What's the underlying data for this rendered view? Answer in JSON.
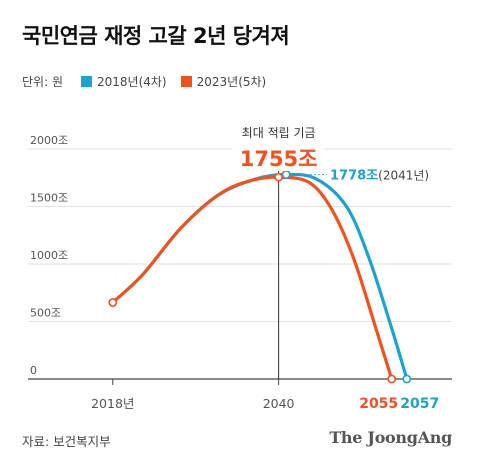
{
  "header": {
    "title": "국민연금 재정 고갈 2년 당겨져",
    "unit": "단위: 원"
  },
  "colors": {
    "series_2018": "#1aa3cf",
    "series_2023": "#f4511e",
    "grid": "#e2e2e2",
    "axis": "#444444"
  },
  "chart_data": {
    "type": "line",
    "ylim": [
      0,
      2000
    ],
    "y_ticks": [
      {
        "value": 0,
        "label": "0"
      },
      {
        "value": 500,
        "label": "500조"
      },
      {
        "value": 1000,
        "label": "1000조"
      },
      {
        "value": 1500,
        "label": "1500조"
      },
      {
        "value": 2000,
        "label": "2000조"
      }
    ],
    "x_ticks": [
      {
        "year": 2018,
        "label": "2018년"
      },
      {
        "year": 2040,
        "label": "2040"
      }
    ],
    "xlim": [
      2011,
      2063
    ],
    "series": [
      {
        "name": "2018년(4차)",
        "color_key": "series_2018",
        "points": [
          [
            2018,
            665
          ],
          [
            2022,
            910
          ],
          [
            2027,
            1310
          ],
          [
            2032,
            1600
          ],
          [
            2037,
            1740
          ],
          [
            2041,
            1778
          ],
          [
            2045,
            1740
          ],
          [
            2049,
            1500
          ],
          [
            2052,
            1050
          ],
          [
            2055,
            440
          ],
          [
            2057,
            0
          ]
        ]
      },
      {
        "name": "2023년(5차)",
        "color_key": "series_2023",
        "points": [
          [
            2018,
            665
          ],
          [
            2022,
            910
          ],
          [
            2027,
            1310
          ],
          [
            2032,
            1600
          ],
          [
            2036,
            1720
          ],
          [
            2040,
            1755
          ],
          [
            2044,
            1710
          ],
          [
            2047,
            1480
          ],
          [
            2050,
            1040
          ],
          [
            2053,
            420
          ],
          [
            2055,
            0
          ]
        ]
      }
    ],
    "annotations": {
      "peak_2023_caption": "최대 적립 기금",
      "peak_2023_value": "1755조",
      "peak_2018_value": "1778조",
      "peak_2018_year": "(2041년)",
      "depletion_2023": "2055",
      "depletion_2018": "2057"
    }
  },
  "footer": {
    "source": "자료: 보건복지부",
    "brand": "The JoongAng"
  }
}
